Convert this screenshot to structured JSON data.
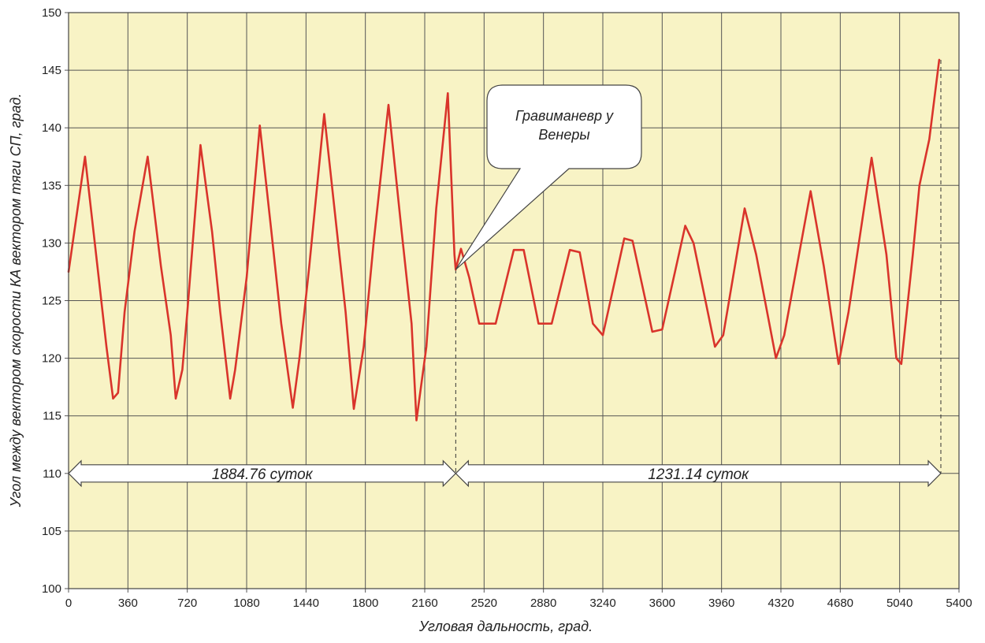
{
  "chart_data": {
    "type": "line",
    "xlabel": "Угловая дальность, град.",
    "ylabel": "Угол между вектором скорости КА вектором тяги СП, град.",
    "xlim": [
      0,
      5400
    ],
    "ylim": [
      100,
      150
    ],
    "xticks": [
      0,
      360,
      720,
      1080,
      1440,
      1800,
      2160,
      2520,
      2880,
      3240,
      3600,
      3960,
      4320,
      4680,
      5040,
      5400
    ],
    "yticks": [
      100,
      105,
      110,
      115,
      120,
      125,
      130,
      135,
      140,
      145,
      150
    ],
    "grid": true,
    "colors": {
      "background": "#f8f3c5",
      "line": "#d9342b",
      "grid": "#555555"
    },
    "series": [
      {
        "values": [
          [
            0,
            127.5
          ],
          [
            100,
            137.5
          ],
          [
            175,
            128
          ],
          [
            230,
            121
          ],
          [
            270,
            116.5
          ],
          [
            300,
            117
          ],
          [
            340,
            124
          ],
          [
            400,
            131
          ],
          [
            480,
            137.5
          ],
          [
            560,
            128
          ],
          [
            620,
            122
          ],
          [
            650,
            116.5
          ],
          [
            690,
            119
          ],
          [
            720,
            124
          ],
          [
            800,
            138.5
          ],
          [
            870,
            131
          ],
          [
            920,
            124
          ],
          [
            980,
            116.5
          ],
          [
            1010,
            119
          ],
          [
            1080,
            127
          ],
          [
            1160,
            140.2
          ],
          [
            1230,
            131
          ],
          [
            1290,
            123
          ],
          [
            1360,
            115.7
          ],
          [
            1400,
            120
          ],
          [
            1460,
            128
          ],
          [
            1550,
            141.2
          ],
          [
            1620,
            132
          ],
          [
            1680,
            124
          ],
          [
            1730,
            115.6
          ],
          [
            1790,
            121
          ],
          [
            1850,
            130
          ],
          [
            1940,
            142
          ],
          [
            2020,
            131
          ],
          [
            2080,
            123
          ],
          [
            2110,
            114.6
          ],
          [
            2170,
            121
          ],
          [
            2230,
            133
          ],
          [
            2300,
            143
          ],
          [
            2340,
            129
          ],
          [
            2348,
            127.7
          ],
          [
            2380,
            129.5
          ],
          [
            2430,
            127
          ],
          [
            2490,
            123
          ],
          [
            2590,
            123
          ],
          [
            2700,
            129.4
          ],
          [
            2760,
            129.4
          ],
          [
            2850,
            123
          ],
          [
            2930,
            123
          ],
          [
            3040,
            129.4
          ],
          [
            3100,
            129.2
          ],
          [
            3180,
            123
          ],
          [
            3240,
            122
          ],
          [
            3370,
            130.4
          ],
          [
            3420,
            130.2
          ],
          [
            3540,
            122.3
          ],
          [
            3600,
            122.5
          ],
          [
            3740,
            131.5
          ],
          [
            3790,
            130
          ],
          [
            3920,
            121
          ],
          [
            3970,
            122
          ],
          [
            4100,
            133
          ],
          [
            4170,
            129
          ],
          [
            4290,
            120
          ],
          [
            4340,
            122
          ],
          [
            4500,
            134.5
          ],
          [
            4580,
            128
          ],
          [
            4670,
            119.5
          ],
          [
            4730,
            124
          ],
          [
            4870,
            137.4
          ],
          [
            4960,
            129
          ],
          [
            5020,
            120
          ],
          [
            5050,
            119.5
          ],
          [
            5120,
            129
          ],
          [
            5160,
            135
          ],
          [
            5220,
            139
          ],
          [
            5280,
            145.9
          ]
        ]
      }
    ],
    "annotations": {
      "callout": {
        "line1": "Гравиманевр у",
        "line2": "Венеры",
        "x": 2348,
        "y": 127.7
      },
      "arrows": [
        {
          "from": 0,
          "to": 2348,
          "y": 110,
          "label": "1884.76 суток"
        },
        {
          "from": 2348,
          "to": 5290,
          "y": 110,
          "label": "1231.14 суток"
        }
      ],
      "dashed_lines": [
        {
          "x": 2348,
          "y_from": 127.7,
          "y_to": 110
        },
        {
          "x": 5290,
          "y_from": 145.9,
          "y_to": 110
        }
      ]
    }
  }
}
